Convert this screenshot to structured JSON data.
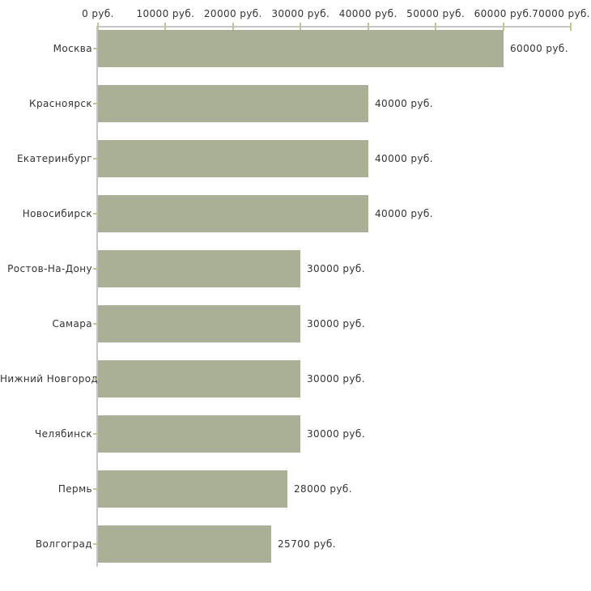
{
  "chart_data": {
    "type": "bar",
    "orientation": "horizontal",
    "title": "",
    "xlabel": "",
    "ylabel": "",
    "grid": false,
    "legend": null,
    "x_axis": {
      "position": "top",
      "min": 0,
      "max": 70000,
      "tick_step": 10000,
      "tick_values": [
        0,
        10000,
        20000,
        30000,
        40000,
        50000,
        60000,
        70000
      ],
      "tick_labels": [
        "0 руб.",
        "10000 руб.",
        "20000 руб.",
        "30000 руб.",
        "40000 руб.",
        "50000 руб.",
        "60000 руб.",
        "70000 руб."
      ]
    },
    "categories": [
      "Москва",
      "Красноярск",
      "Екатеринбург",
      "Новосибирск",
      "Ростов-На-Дону",
      "Самара",
      "Нижний Новгород",
      "Челябинск",
      "Пермь",
      "Волгоград"
    ],
    "values": [
      60000,
      40000,
      40000,
      40000,
      30000,
      30000,
      30000,
      30000,
      28000,
      25700
    ],
    "value_labels": [
      "60000 руб.",
      "40000 руб.",
      "40000 руб.",
      "40000 руб.",
      "30000 руб.",
      "30000 руб.",
      "30000 руб.",
      "30000 руб.",
      "28000 руб.",
      "25700 руб."
    ],
    "colors": {
      "bar": "#aab095",
      "axis_line": "#c6c6c6",
      "tick": "#c3c394",
      "text": "#333333",
      "background": "#ffffff"
    }
  }
}
